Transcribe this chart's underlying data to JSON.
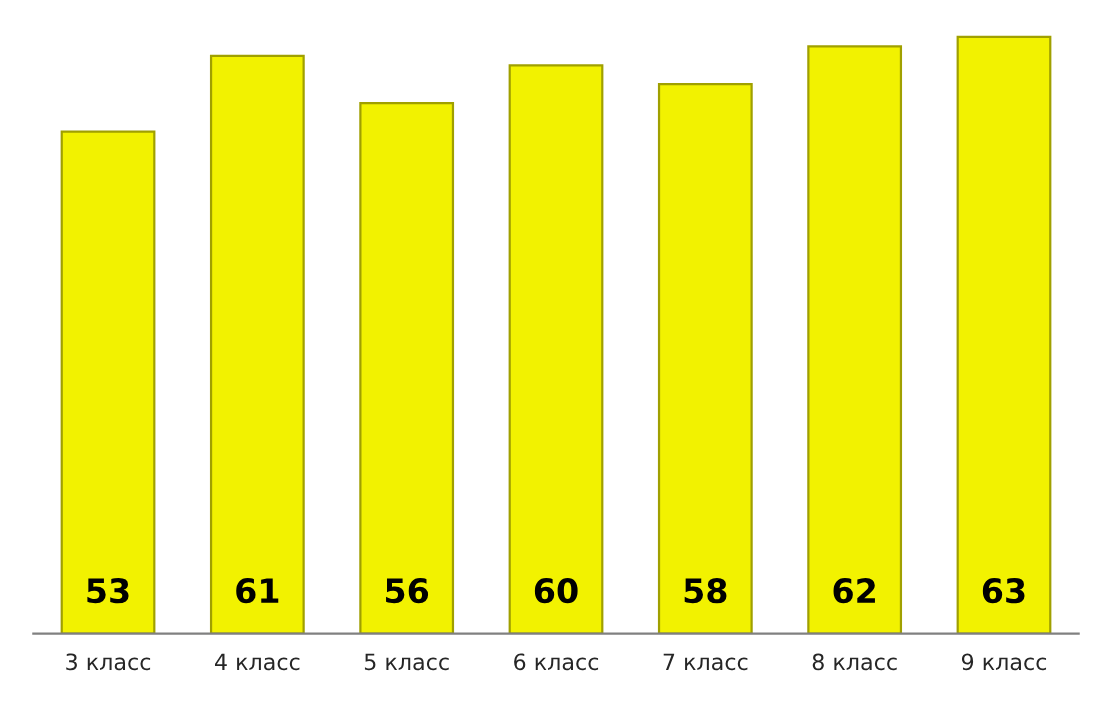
{
  "chart_data": {
    "type": "bar",
    "categories": [
      "3 класс",
      "4 класс",
      "5 класс",
      "6 класс",
      "7 класс",
      "8 класс",
      "9 класс"
    ],
    "values": [
      53,
      61,
      56,
      60,
      58,
      62,
      63
    ],
    "color": "#f2f200",
    "tick_labels": "x",
    "data_labels": true,
    "grid": false,
    "legend": false
  }
}
